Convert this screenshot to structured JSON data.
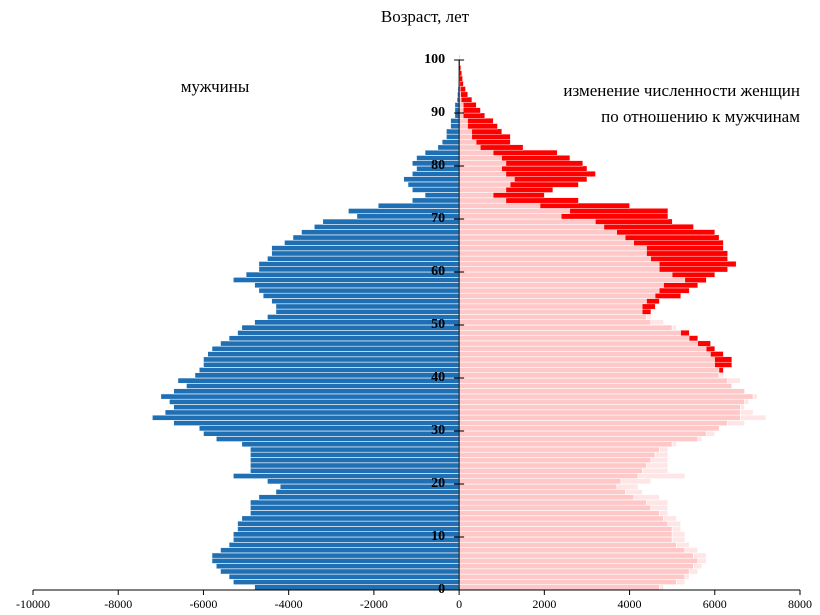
{
  "chart_data": {
    "type": "pyramid",
    "title": "Возраст, лет",
    "annotations": [
      "мужчины",
      "изменение численности женщин",
      "по отношению к мужчинам"
    ],
    "categories": [
      0,
      1,
      2,
      3,
      4,
      5,
      6,
      7,
      8,
      9,
      10,
      11,
      12,
      13,
      14,
      15,
      16,
      17,
      18,
      19,
      20,
      21,
      22,
      23,
      24,
      25,
      26,
      27,
      28,
      29,
      30,
      31,
      32,
      33,
      34,
      35,
      36,
      37,
      38,
      39,
      40,
      41,
      42,
      43,
      44,
      45,
      46,
      47,
      48,
      49,
      50,
      51,
      52,
      53,
      54,
      55,
      56,
      57,
      58,
      59,
      60,
      61,
      62,
      63,
      64,
      65,
      66,
      67,
      68,
      69,
      70,
      71,
      72,
      73,
      74,
      75,
      76,
      77,
      78,
      79,
      80,
      81,
      82,
      83,
      84,
      85,
      86,
      87,
      88,
      89,
      90,
      91,
      92,
      93,
      94,
      95,
      96,
      97,
      98,
      99,
      100
    ],
    "series": [
      {
        "name": "мужчины",
        "color": "#1f6fb4",
        "values": [
          -4800,
          -5300,
          -5400,
          -5600,
          -5700,
          -5800,
          -5800,
          -5600,
          -5400,
          -5300,
          -5300,
          -5200,
          -5200,
          -5100,
          -4900,
          -4900,
          -4900,
          -4700,
          -4300,
          -4200,
          -4500,
          -5300,
          -4900,
          -4900,
          -4900,
          -4900,
          -4900,
          -5100,
          -5700,
          -6000,
          -6100,
          -6700,
          -7200,
          -6900,
          -6700,
          -6800,
          -7000,
          -6700,
          -6400,
          -6600,
          -6200,
          -6100,
          -6000,
          -6000,
          -5900,
          -5800,
          -5600,
          -5400,
          -5200,
          -5100,
          -4800,
          -4500,
          -4300,
          -4300,
          -4400,
          -4600,
          -4700,
          -4800,
          -5300,
          -5000,
          -4700,
          -4700,
          -4500,
          -4400,
          -4400,
          -4100,
          -3900,
          -3700,
          -3400,
          -3200,
          -2400,
          -2600,
          -1900,
          -1100,
          -800,
          -1100,
          -1200,
          -1300,
          -1100,
          -1000,
          -1100,
          -1000,
          -800,
          -500,
          -400,
          -300,
          -300,
          -200,
          -200,
          -100,
          -100,
          -100,
          -50,
          -40,
          -30,
          -20,
          -10,
          -10,
          -5,
          -5,
          0
        ]
      },
      {
        "name": "женщины",
        "color": "#ffc8c8",
        "excess_color": "#ff0000",
        "values": [
          4700,
          5100,
          5300,
          5400,
          5500,
          5600,
          5500,
          5300,
          5100,
          5000,
          5000,
          5000,
          4900,
          4800,
          4700,
          4500,
          4400,
          4100,
          3900,
          3700,
          3800,
          4200,
          4300,
          4400,
          4500,
          4600,
          4700,
          5000,
          5600,
          5800,
          6100,
          6300,
          6600,
          6600,
          6600,
          6700,
          6900,
          6700,
          6400,
          6300,
          6100,
          6200,
          6400,
          6400,
          6200,
          6000,
          5900,
          5600,
          5400,
          5000,
          4500,
          4400,
          4500,
          4600,
          4700,
          5200,
          5400,
          5600,
          5800,
          6000,
          6300,
          6500,
          6300,
          6300,
          6200,
          6200,
          6100,
          6000,
          5500,
          5000,
          4900,
          4900,
          4000,
          2800,
          2000,
          2200,
          2800,
          3000,
          3200,
          3000,
          2900,
          2600,
          2300,
          1500,
          1200,
          1200,
          1000,
          900,
          800,
          600,
          500,
          400,
          300,
          200,
          150,
          100,
          80,
          60,
          40,
          20,
          10
        ]
      }
    ],
    "xlim": [
      -10000,
      8000
    ],
    "xticks": [
      -10000,
      -8000,
      -6000,
      -4000,
      -2000,
      0,
      2000,
      4000,
      6000,
      8000
    ],
    "ylim": [
      0,
      100
    ],
    "yticks": [
      0,
      10,
      20,
      30,
      40,
      50,
      60,
      70,
      80,
      90,
      100
    ]
  }
}
